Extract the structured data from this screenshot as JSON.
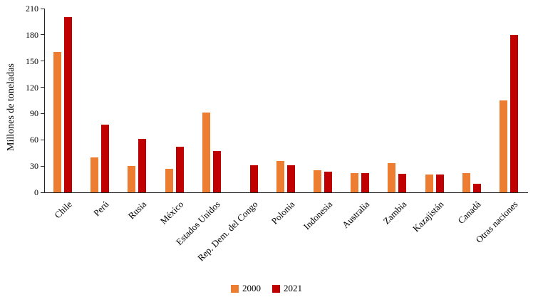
{
  "chart_data": {
    "type": "bar",
    "title": "",
    "ylabel": "Millones de toneladas",
    "xlabel": "",
    "ylim": [
      0,
      210
    ],
    "yticks": [
      0,
      30,
      60,
      90,
      120,
      150,
      180,
      210
    ],
    "grid": false,
    "legend_position": "bottom",
    "categories": [
      "Chile",
      "Perú",
      "Rusia",
      "México",
      "Estados Unidos",
      "Rep. Dem. del Congo",
      "Polonia",
      "Indonesia",
      "Australia",
      "Zambia",
      "Kazajistán",
      "Canadá",
      "Otras naciones"
    ],
    "series": [
      {
        "name": "2000",
        "color": "#ED7D31",
        "values": [
          160,
          40,
          30,
          27,
          91,
          0,
          36,
          25,
          22,
          33,
          20,
          22,
          105
        ]
      },
      {
        "name": "2021",
        "color": "#C00000",
        "values": [
          200,
          77,
          61,
          52,
          47,
          31,
          31,
          24,
          22,
          21,
          20,
          10,
          180
        ]
      }
    ]
  }
}
